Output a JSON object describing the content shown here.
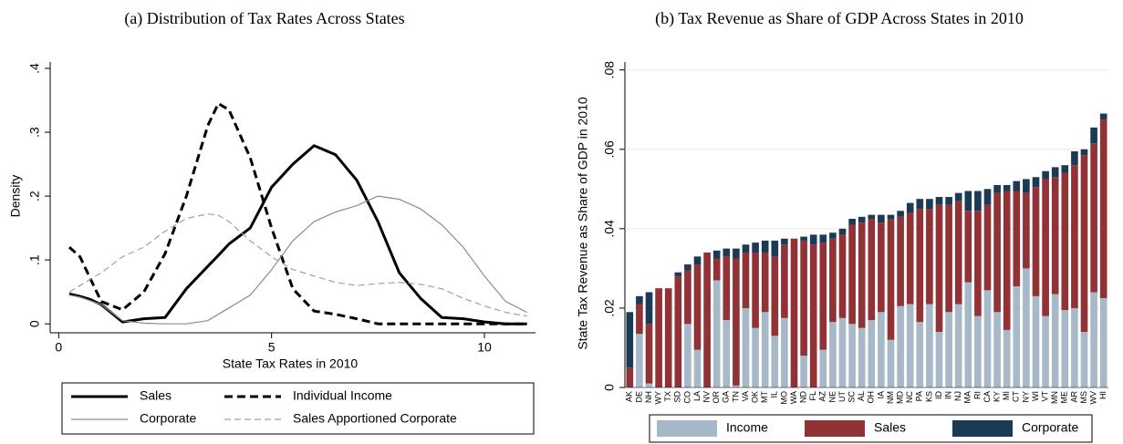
{
  "chart_data": [
    {
      "type": "line",
      "title": "(a) Distribution of Tax Rates Across States",
      "x_label": "State Tax Rates in 2010",
      "y_label": "Density",
      "x": [
        0.25,
        0.5,
        0.75,
        1,
        1.5,
        2,
        2.5,
        3,
        3.5,
        3.75,
        4,
        4.5,
        5,
        5.5,
        6,
        6.5,
        7,
        7.5,
        8,
        8.5,
        9,
        9.5,
        10,
        10.5,
        11
      ],
      "series": [
        {
          "name": "Sales",
          "color": "#000000",
          "line_width": 3,
          "dash": false,
          "values": [
            0.047,
            0.043,
            0.038,
            0.03,
            0.003,
            0.008,
            0.01,
            0.055,
            0.09,
            0.107,
            0.125,
            0.15,
            0.214,
            0.25,
            0.279,
            0.265,
            0.225,
            0.16,
            0.08,
            0.04,
            0.01,
            0.008,
            0.003,
            0,
            0
          ]
        },
        {
          "name": "Individual Income",
          "color": "#000000",
          "line_width": 3,
          "dash": true,
          "values": [
            0.12,
            0.105,
            0.07,
            0.035,
            0.022,
            0.05,
            0.11,
            0.2,
            0.31,
            0.345,
            0.335,
            0.26,
            0.15,
            0.055,
            0.02,
            0.015,
            0.008,
            0,
            0,
            0,
            0,
            0,
            0,
            0,
            0
          ]
        },
        {
          "name": "Corporate",
          "color": "#8c8c8c",
          "line_width": 1.2,
          "dash": false,
          "values": [
            0.045,
            0.042,
            0.036,
            0.03,
            0.005,
            0.001,
            0,
            0,
            0.005,
            0.015,
            0.025,
            0.045,
            0.085,
            0.13,
            0.16,
            0.175,
            0.185,
            0.2,
            0.195,
            0.18,
            0.155,
            0.12,
            0.075,
            0.035,
            0.018
          ]
        },
        {
          "name": "Sales Apportioned Corporate",
          "color": "#a0a0a0",
          "line_width": 1.2,
          "dash": true,
          "values": [
            0.05,
            0.06,
            0.07,
            0.08,
            0.105,
            0.12,
            0.145,
            0.165,
            0.172,
            0.17,
            0.16,
            0.13,
            0.105,
            0.085,
            0.075,
            0.065,
            0.06,
            0.063,
            0.065,
            0.062,
            0.055,
            0.04,
            0.028,
            0.018,
            0.012
          ]
        }
      ],
      "xlim": [
        -0.2,
        11.2
      ],
      "xticks": [
        0,
        5,
        10
      ],
      "ylim": [
        -0.014,
        0.41
      ],
      "yticks": [
        0,
        {
          "value": 0.1,
          "label": ".1"
        },
        {
          "value": 0.2,
          "label": ".2"
        },
        {
          "value": 0.3,
          "label": ".3"
        },
        {
          "value": 0.4,
          "label": ".4"
        }
      ],
      "grid": false,
      "legend": "bottom"
    },
    {
      "type": "bar",
      "stacked": true,
      "title": "(b) Tax Revenue as Share of GDP Across States in 2010",
      "y_label": "State Tax Revenue as Share of GDP in 2010",
      "categories": [
        "AK",
        "DE",
        "NH",
        "WY",
        "TX",
        "SD",
        "CO",
        "LA",
        "NV",
        "OR",
        "GA",
        "TN",
        "VA",
        "OK",
        "MT",
        "IL",
        "MO",
        "WA",
        "ND",
        "FL",
        "AZ",
        "NE",
        "UT",
        "SC",
        "AL",
        "OH",
        "IA",
        "NM",
        "MD",
        "NC",
        "PA",
        "KS",
        "ID",
        "IN",
        "NJ",
        "MA",
        "RI",
        "CA",
        "KY",
        "MI",
        "CT",
        "NY",
        "WI",
        "VT",
        "MN",
        "ME",
        "AR",
        "MS",
        "WV",
        "HI"
      ],
      "series": [
        {
          "name": "Income",
          "color": "#a7b8c8",
          "values": [
            0,
            0.0135,
            0.001,
            0,
            0,
            0,
            0.016,
            0.0095,
            0,
            0.027,
            0.017,
            0.0005,
            0.02,
            0.015,
            0.019,
            0.013,
            0.0175,
            0,
            0.008,
            0,
            0.0095,
            0.0165,
            0.0175,
            0.016,
            0.015,
            0.017,
            0.019,
            0.012,
            0.0205,
            0.021,
            0.0165,
            0.021,
            0.014,
            0.019,
            0.021,
            0.0265,
            0.018,
            0.0245,
            0.019,
            0.0145,
            0.0255,
            0.03,
            0.023,
            0.018,
            0.0235,
            0.0195,
            0.02,
            0.014,
            0.024,
            0.0225
          ]
        },
        {
          "name": "Sales",
          "color": "#903236",
          "values": [
            0.005,
            0.0075,
            0.015,
            0.025,
            0.025,
            0.028,
            0.0135,
            0.0215,
            0.034,
            0.0055,
            0.016,
            0.032,
            0.014,
            0.019,
            0.015,
            0.02,
            0.0185,
            0.0375,
            0.029,
            0.036,
            0.027,
            0.021,
            0.021,
            0.025,
            0.0265,
            0.0255,
            0.0225,
            0.0305,
            0.0225,
            0.023,
            0.0285,
            0.024,
            0.032,
            0.027,
            0.026,
            0.018,
            0.0265,
            0.0215,
            0.03,
            0.035,
            0.024,
            0.019,
            0.0275,
            0.0345,
            0.0295,
            0.0345,
            0.036,
            0.0445,
            0.0375,
            0.045
          ]
        },
        {
          "name": "Corporate",
          "color": "#1a3a55",
          "values": [
            0.014,
            0.002,
            0.008,
            0,
            0,
            0.001,
            0.0015,
            0.002,
            0,
            0.002,
            0.002,
            0.0025,
            0.002,
            0.0025,
            0.003,
            0.004,
            0.0015,
            0,
            0.001,
            0.0025,
            0.002,
            0.0015,
            0.0015,
            0.0015,
            0.0015,
            0.001,
            0.002,
            0.001,
            0.0015,
            0.0025,
            0.0025,
            0.0025,
            0.002,
            0.002,
            0.002,
            0.005,
            0.005,
            0.004,
            0.002,
            0.0015,
            0.0025,
            0.0035,
            0.0025,
            0.002,
            0.0025,
            0.002,
            0.0035,
            0.0015,
            0.004,
            0.0015
          ]
        }
      ],
      "ylim": [
        0,
        0.082
      ],
      "yticks": [
        0,
        {
          "value": 0.02,
          "label": ".02"
        },
        {
          "value": 0.04,
          "label": ".04"
        },
        {
          "value": 0.06,
          "label": ".06"
        },
        {
          "value": 0.08,
          "label": ".08"
        }
      ],
      "grid": true,
      "legend": "bottom"
    }
  ]
}
